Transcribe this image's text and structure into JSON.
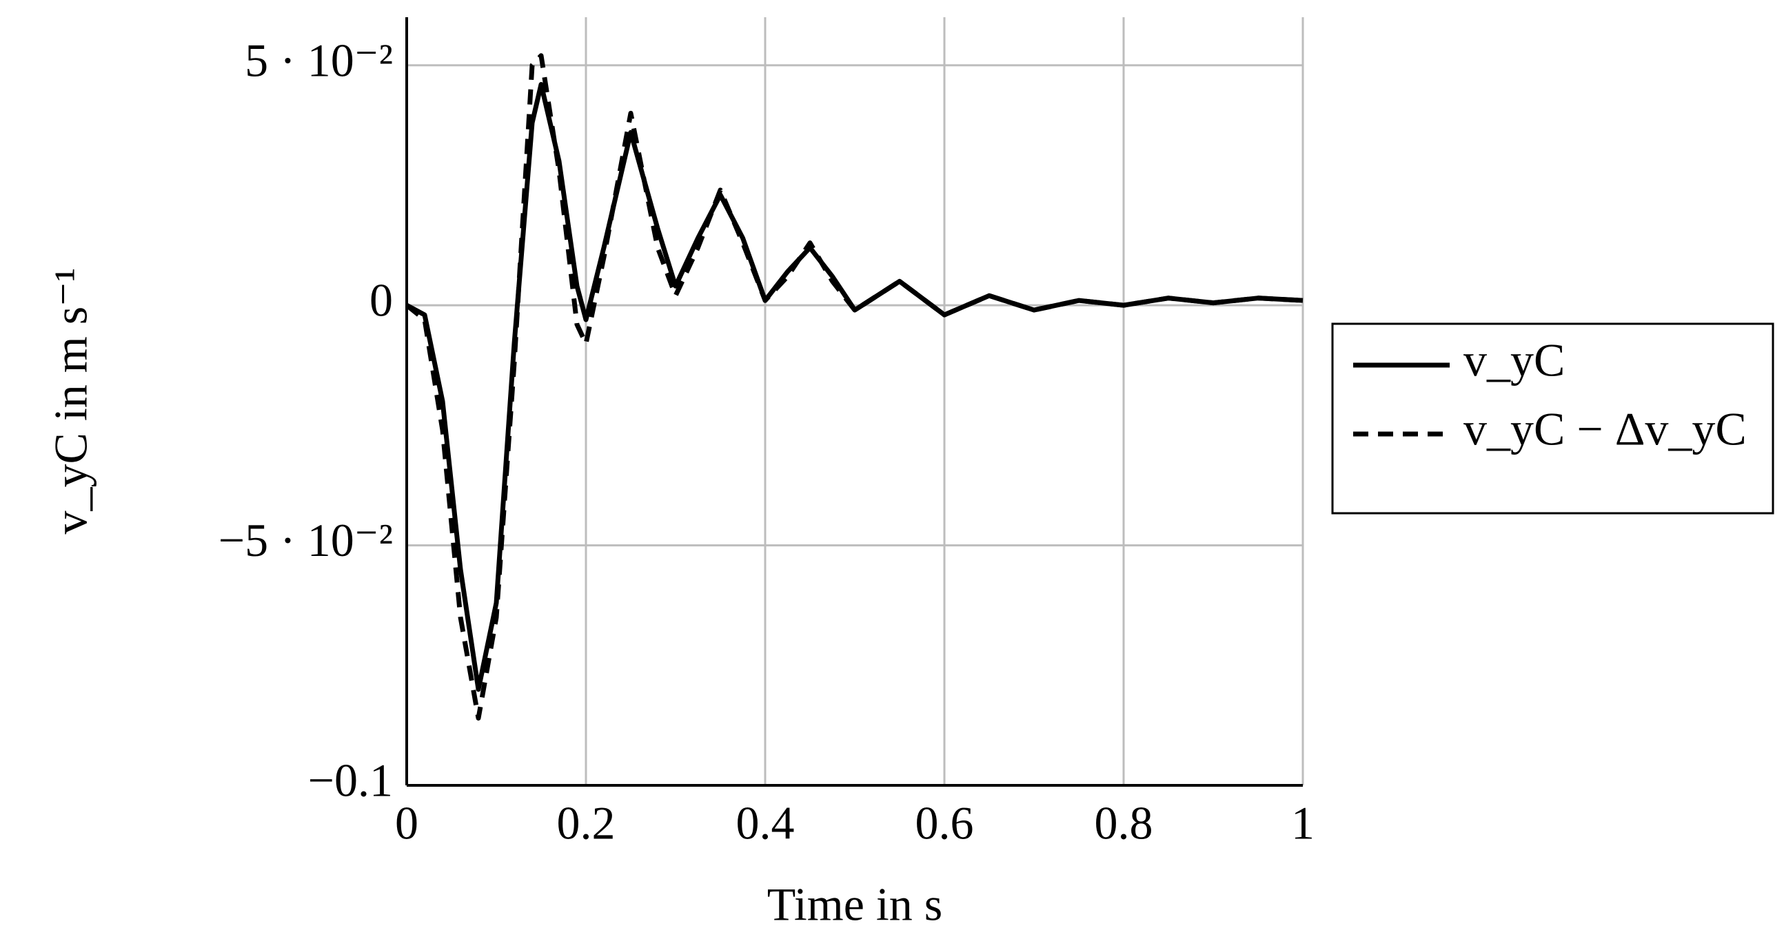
{
  "chart_data": {
    "type": "line",
    "x_label": "Time in s",
    "y_label": "v_yC in m s⁻¹",
    "x": [
      0,
      0.02,
      0.04,
      0.06,
      0.08,
      0.1,
      0.12,
      0.14,
      0.15,
      0.17,
      0.19,
      0.2,
      0.22,
      0.25,
      0.28,
      0.3,
      0.325,
      0.35,
      0.375,
      0.4,
      0.425,
      0.45,
      0.475,
      0.5,
      0.55,
      0.6,
      0.65,
      0.7,
      0.75,
      0.8,
      0.85,
      0.9,
      0.95,
      1
    ],
    "series": [
      {
        "name": "v_yC",
        "color": "#000000",
        "style": "solid",
        "values": [
          0,
          -0.002,
          -0.02,
          -0.055,
          -0.08,
          -0.062,
          -0.008,
          0.038,
          0.046,
          0.03,
          0.004,
          -0.003,
          0.012,
          0.036,
          0.016,
          0.004,
          0.014,
          0.023,
          0.014,
          0.001,
          0.007,
          0.012,
          0.006,
          -0.001,
          0.005,
          -0.002,
          0.002,
          -0.001,
          0.001,
          0,
          0.0015,
          0.0005,
          0.0015,
          0.001
        ]
      },
      {
        "name": "v_yC − Δv_yC",
        "color": "#000000",
        "style": "dashed",
        "values": [
          0,
          -0.003,
          -0.026,
          -0.065,
          -0.086,
          -0.065,
          -0.012,
          0.05,
          0.052,
          0.028,
          -0.004,
          -0.008,
          0.01,
          0.04,
          0.012,
          0.002,
          0.012,
          0.024,
          0.013,
          0.001,
          0.006,
          0.013,
          0.005,
          -0.001,
          0.005,
          -0.002,
          0.002,
          -0.001,
          0.001,
          0,
          0.0015,
          0.0005,
          0.0015,
          0.001
        ]
      }
    ],
    "xlim": [
      0,
      1
    ],
    "xticks": [
      0,
      0.2,
      0.4,
      0.6,
      0.8,
      1
    ],
    "ylim": [
      -0.1,
      0.06
    ],
    "yticks": [
      {
        "value": -0.1,
        "label": "−0.1"
      },
      {
        "value": -0.05,
        "label": "−5 · 10⁻²"
      },
      0,
      {
        "value": 0.05,
        "label": "5 · 10⁻²"
      }
    ],
    "grid": true,
    "legend": "outside right"
  }
}
